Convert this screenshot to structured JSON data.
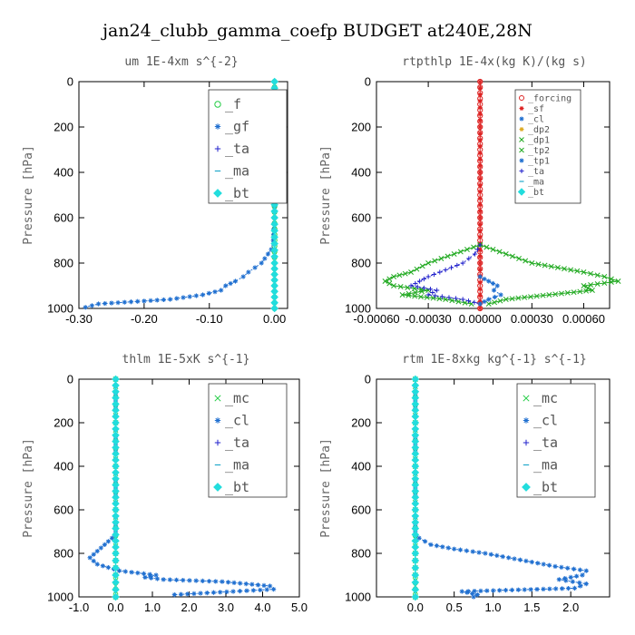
{
  "figure_title": "jan24_clubb_gamma_coefp  BUDGET at240E,28N",
  "chart_data": [
    {
      "type": "line",
      "title": "um  1E-4xm s^{-2}",
      "ylabel": "Pressure [hPa]",
      "xlim": [
        -0.3,
        0.02
      ],
      "ylim": [
        0,
        1000
      ],
      "y_inverted": true,
      "xticks": [
        -0.3,
        -0.2,
        -0.1,
        0.0
      ],
      "xtick_labels": [
        "-0.30",
        "-0.20",
        "-0.10",
        "0.00"
      ],
      "yticks": [
        0,
        200,
        400,
        600,
        800,
        1000
      ],
      "legend": {
        "placement": "top-right",
        "style": "large",
        "entries": [
          "_f",
          "_gf",
          "_ta",
          "_ma",
          "_bt"
        ]
      },
      "series": [
        {
          "name": "_f",
          "color": "#22cc44",
          "marker": "circle",
          "y": [
            0,
            100,
            200,
            300,
            400,
            500,
            600,
            700,
            800,
            900,
            950,
            1000
          ],
          "x": [
            0,
            0,
            0,
            0,
            0,
            0,
            0,
            0,
            0,
            0,
            0,
            0
          ]
        },
        {
          "name": "_gf",
          "color": "#1f6fd0",
          "marker": "star",
          "y": [
            0,
            100,
            150,
            200,
            300,
            400,
            500,
            600,
            700,
            740,
            760,
            780,
            800,
            820,
            840,
            860,
            880,
            900,
            920,
            940,
            960,
            980,
            995
          ],
          "x": [
            0,
            0,
            0,
            0,
            0,
            0,
            0,
            0,
            -0.002,
            -0.005,
            -0.01,
            -0.015,
            -0.02,
            -0.03,
            -0.04,
            -0.048,
            -0.06,
            -0.075,
            -0.082,
            -0.11,
            -0.16,
            -0.27,
            -0.29
          ]
        },
        {
          "name": "_ta",
          "color": "#2222cc",
          "marker": "plus",
          "y": [
            0,
            200,
            400,
            600,
            800,
            900,
            1000
          ],
          "x": [
            0,
            0,
            0,
            0,
            0,
            0,
            0
          ]
        },
        {
          "name": "_ma",
          "color": "#22aacc",
          "marker": "dash",
          "y": [
            0,
            200,
            400,
            600,
            800,
            900,
            1000
          ],
          "x": [
            0,
            0,
            0,
            0,
            0,
            0,
            0
          ]
        },
        {
          "name": "_bt",
          "color": "#22dddd",
          "marker": "diamond",
          "y": [
            0,
            200,
            400,
            600,
            800,
            900,
            1000
          ],
          "x": [
            0,
            0,
            0,
            0,
            0,
            0,
            0
          ]
        }
      ]
    },
    {
      "type": "line",
      "title": "rtpthlp  1E-4x(kg K)/(kg s)",
      "ylabel": "Pressure [hPa]",
      "xlim": [
        -0.0006,
        0.00075
      ],
      "ylim": [
        0,
        1000
      ],
      "y_inverted": true,
      "xticks": [
        -0.0006,
        -0.0003,
        0.0,
        0.0003,
        0.0006
      ],
      "xtick_labels": [
        "-0.00060",
        "-0.00030",
        "0.00000",
        "0.00030",
        "0.00060"
      ],
      "yticks": [
        0,
        200,
        400,
        600,
        800,
        1000
      ],
      "legend": {
        "placement": "top-right",
        "style": "small",
        "entries": [
          "_forcing",
          "_sf",
          "_cl",
          "_dp2",
          "_dp1",
          "_tp2",
          "_tp1",
          "_ta",
          "_ma",
          "_bt"
        ]
      },
      "series": [
        {
          "name": "_forcing",
          "color": "#dd2222",
          "marker": "circle",
          "y": [
            0,
            100,
            200,
            300,
            400,
            500,
            600,
            700,
            800,
            900,
            1000
          ],
          "x": [
            0,
            0,
            0,
            0,
            0,
            0,
            0,
            0,
            0,
            0,
            0
          ]
        },
        {
          "name": "_sf",
          "color": "#dd2222",
          "marker": "star",
          "y": [
            0,
            200,
            400,
            600,
            800,
            1000
          ],
          "x": [
            0,
            0,
            0,
            0,
            0,
            0
          ]
        },
        {
          "name": "_dp1",
          "color": "#22aa22",
          "marker": "x",
          "y": [
            720,
            760,
            800,
            840,
            860,
            880,
            900,
            920,
            940,
            960,
            980
          ],
          "x": [
            0,
            0.00015,
            0.0003,
            0.0006,
            0.00072,
            0.0008,
            0.0006,
            0.00065,
            0.0004,
            0.00015,
            5e-05
          ]
        },
        {
          "name": "_tp2",
          "color": "#22aa22",
          "marker": "x",
          "y": [
            720,
            760,
            800,
            840,
            860,
            880,
            900,
            920,
            940,
            960,
            980
          ],
          "x": [
            0,
            -0.00015,
            -0.0003,
            -0.0004,
            -0.0005,
            -0.00055,
            -0.0005,
            -0.0003,
            -0.00045,
            -0.0002,
            -5e-05
          ]
        },
        {
          "name": "_ta",
          "color": "#2222cc",
          "marker": "plus",
          "y": [
            720,
            760,
            800,
            830,
            860,
            880,
            900,
            920,
            940,
            960,
            980
          ],
          "x": [
            0,
            -3e-05,
            -0.0001,
            -0.0002,
            -0.0003,
            -0.00035,
            -0.0004,
            -0.00025,
            -0.0003,
            -0.0001,
            0
          ]
        },
        {
          "name": "_tp1",
          "color": "#1f6fd0",
          "marker": "star",
          "y": [
            860,
            880,
            900,
            920,
            940,
            960,
            980
          ],
          "x": [
            0,
            5e-05,
            0.0001,
            8e-05,
            0.00012,
            5e-05,
            0
          ]
        }
      ]
    },
    {
      "type": "line",
      "title": "thlm  1E-5xK s^{-1}",
      "ylabel": "Pressure [hPa]",
      "xlim": [
        -1.0,
        5.0
      ],
      "ylim": [
        0,
        1000
      ],
      "y_inverted": true,
      "xticks": [
        -1,
        0,
        1,
        2,
        3,
        4,
        5
      ],
      "xtick_labels": [
        "-1.0",
        "0.0",
        "1.0",
        "2.0",
        "3.0",
        "4.0",
        "5.0"
      ],
      "yticks": [
        0,
        200,
        400,
        600,
        800,
        1000
      ],
      "legend": {
        "placement": "top-right",
        "style": "large",
        "entries": [
          "_mc",
          "_cl",
          "_ta",
          "_ma",
          "_bt"
        ]
      },
      "series": [
        {
          "name": "_mc",
          "color": "#22cc44",
          "marker": "x",
          "y": [
            0,
            100,
            200,
            300,
            400,
            500,
            600,
            700,
            800,
            900,
            950,
            1000
          ],
          "x": [
            0,
            0,
            0,
            0,
            0,
            0,
            0,
            0,
            0,
            0,
            0,
            0
          ]
        },
        {
          "name": "_cl",
          "color": "#1f6fd0",
          "marker": "star",
          "y": [
            0,
            100,
            200,
            300,
            400,
            500,
            600,
            700,
            730,
            760,
            790,
            820,
            850,
            880,
            900,
            910,
            920,
            930,
            950,
            965,
            975,
            990
          ],
          "x": [
            0,
            0,
            0,
            0,
            0,
            0,
            0,
            0,
            -0.1,
            -0.3,
            -0.5,
            -0.7,
            -0.5,
            0.1,
            1.1,
            0.8,
            1.3,
            2.9,
            4.2,
            4.3,
            3.2,
            1.6
          ]
        },
        {
          "name": "_ta",
          "color": "#2222cc",
          "marker": "plus",
          "y": [
            0,
            200,
            400,
            600,
            800,
            900,
            1000
          ],
          "x": [
            0,
            0,
            0,
            0,
            0,
            0,
            0
          ]
        },
        {
          "name": "_ma",
          "color": "#22aacc",
          "marker": "dash",
          "y": [
            0,
            200,
            400,
            600,
            800,
            900,
            1000
          ],
          "x": [
            0,
            0,
            0,
            0,
            0,
            0,
            0
          ]
        },
        {
          "name": "_bt",
          "color": "#22dddd",
          "marker": "diamond",
          "y": [
            0,
            200,
            400,
            600,
            800,
            900,
            1000
          ],
          "x": [
            0,
            0,
            0,
            0,
            0,
            0,
            0
          ]
        }
      ]
    },
    {
      "type": "line",
      "title": "rtm  1E-8xkg kg^{-1} s^{-1}",
      "ylabel": "Pressure [hPa]",
      "xlim": [
        -0.5,
        2.5
      ],
      "ylim": [
        0,
        1000
      ],
      "y_inverted": true,
      "xticks": [
        0,
        0.5,
        1,
        1.5,
        2
      ],
      "xtick_labels": [
        "0.0",
        "0.5",
        "1.0",
        "1.5",
        "2.0"
      ],
      "yticks": [
        0,
        200,
        400,
        600,
        800,
        1000
      ],
      "legend": {
        "placement": "top-right",
        "style": "large",
        "entries": [
          "_mc",
          "_cl",
          "_ta",
          "_ma",
          "_bt"
        ]
      },
      "series": [
        {
          "name": "_mc",
          "color": "#22cc44",
          "marker": "x",
          "y": [
            0,
            100,
            200,
            300,
            400,
            500,
            600,
            700,
            800,
            900,
            950,
            1000
          ],
          "x": [
            0,
            0,
            0,
            0,
            0,
            0,
            0,
            0,
            0,
            0,
            0,
            0
          ]
        },
        {
          "name": "_cl",
          "color": "#1f6fd0",
          "marker": "star",
          "y": [
            0,
            100,
            200,
            300,
            400,
            500,
            600,
            700,
            730,
            760,
            780,
            800,
            820,
            840,
            860,
            880,
            900,
            920,
            940,
            960,
            975,
            990,
            1000
          ],
          "x": [
            0,
            0,
            0,
            0,
            0,
            0,
            0,
            0,
            0.05,
            0.2,
            0.5,
            0.9,
            1.2,
            1.5,
            1.8,
            2.2,
            2.15,
            1.85,
            2.2,
            2.05,
            0.6,
            0.8,
            0.75
          ]
        },
        {
          "name": "_ta",
          "color": "#2222cc",
          "marker": "plus",
          "y": [
            0,
            200,
            400,
            600,
            800,
            900,
            1000
          ],
          "x": [
            0,
            0,
            0,
            0,
            0,
            0,
            0
          ]
        },
        {
          "name": "_ma",
          "color": "#22aacc",
          "marker": "dash",
          "y": [
            0,
            200,
            400,
            600,
            800,
            900,
            1000
          ],
          "x": [
            0,
            0,
            0,
            0,
            0,
            0,
            0
          ]
        },
        {
          "name": "_bt",
          "color": "#22dddd",
          "marker": "diamond",
          "y": [
            0,
            200,
            400,
            600,
            800,
            900,
            1000
          ],
          "x": [
            0,
            0,
            0,
            0,
            0,
            0,
            0
          ]
        }
      ]
    }
  ]
}
